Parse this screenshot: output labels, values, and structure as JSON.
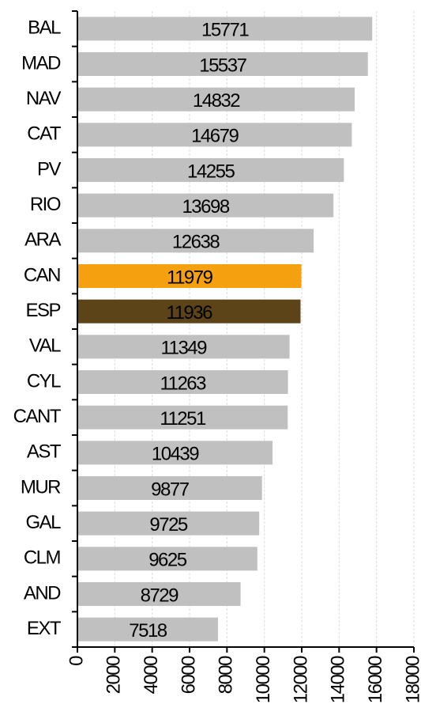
{
  "chart_data": {
    "type": "bar",
    "orientation": "horizontal",
    "categories": [
      "BAL",
      "MAD",
      "NAV",
      "CAT",
      "PV",
      "RIO",
      "ARA",
      "CAN",
      "ESP",
      "VAL",
      "CYL",
      "CANT",
      "AST",
      "MUR",
      "GAL",
      "CLM",
      "AND",
      "EXT"
    ],
    "values": [
      15771,
      15537,
      14832,
      14679,
      14255,
      13698,
      12638,
      11979,
      11936,
      11349,
      11263,
      11251,
      10439,
      9877,
      9725,
      9625,
      8729,
      7518
    ],
    "colors": [
      "#c0c0c0",
      "#c0c0c0",
      "#c0c0c0",
      "#c0c0c0",
      "#c0c0c0",
      "#c0c0c0",
      "#c0c0c0",
      "#f5a10f",
      "#5c4418",
      "#c0c0c0",
      "#c0c0c0",
      "#c0c0c0",
      "#c0c0c0",
      "#c0c0c0",
      "#c0c0c0",
      "#c0c0c0",
      "#c0c0c0",
      "#c0c0c0"
    ],
    "xlim": [
      0,
      18000
    ],
    "xticks": [
      0,
      2000,
      4000,
      6000,
      8000,
      10000,
      12000,
      14000,
      16000,
      18000
    ],
    "grid": true
  }
}
